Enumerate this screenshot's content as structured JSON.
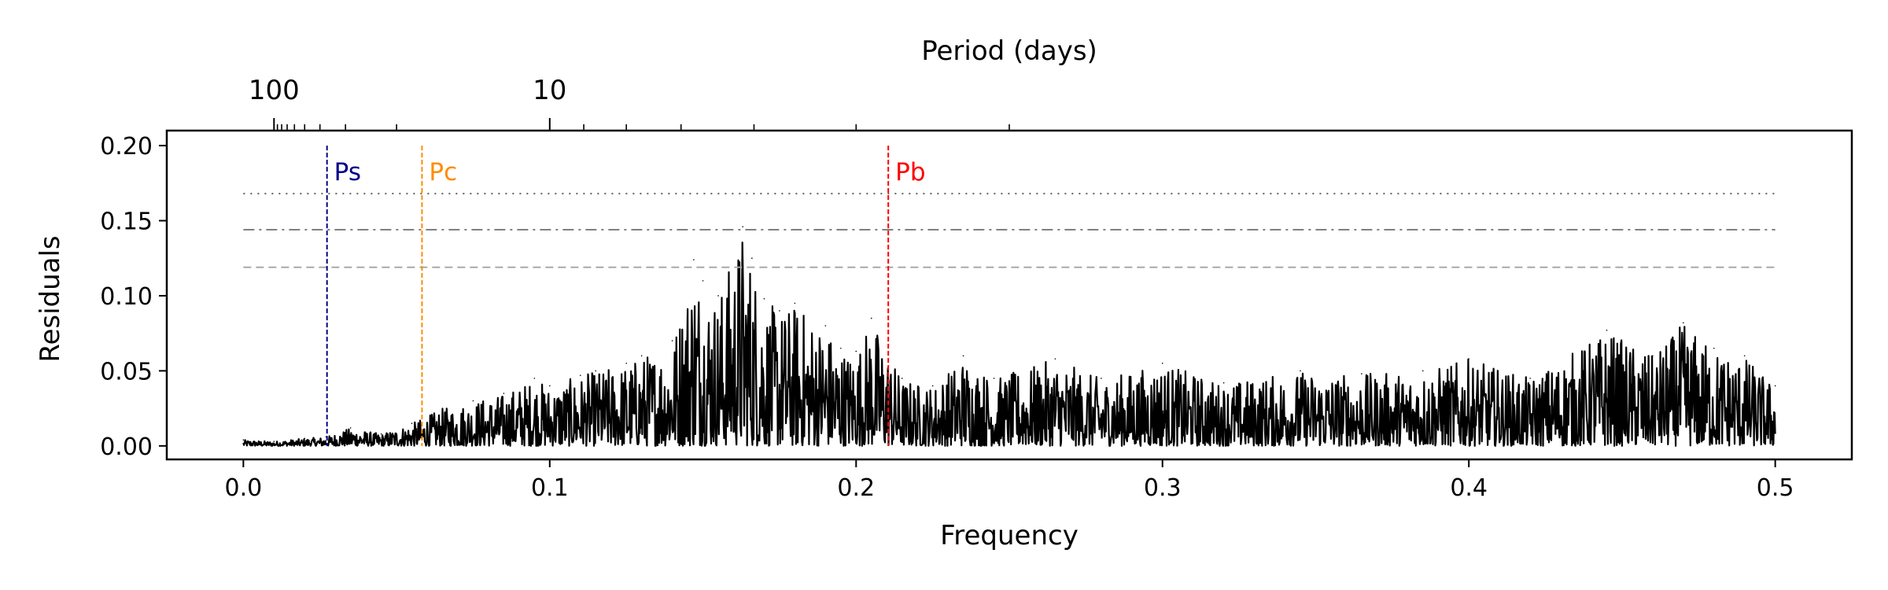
{
  "chart_data": {
    "type": "line",
    "xlabel": "Frequency",
    "ylabel": "Residuals",
    "top_axis_label": "Period (days)",
    "xlim": [
      -0.025,
      0.525
    ],
    "ylim": [
      -0.009,
      0.21
    ],
    "x_ticks": [
      0.0,
      0.1,
      0.2,
      0.3,
      0.4,
      0.5
    ],
    "x_tick_labels": [
      "0.0",
      "0.1",
      "0.2",
      "0.3",
      "0.4",
      "0.5"
    ],
    "y_ticks": [
      0.0,
      0.05,
      0.1,
      0.15,
      0.2
    ],
    "y_tick_labels": [
      "0.00",
      "0.05",
      "0.10",
      "0.15",
      "0.20"
    ],
    "top_major_ticks": [
      100,
      10
    ],
    "top_major_tick_labels": [
      "100",
      "10"
    ],
    "top_minor_ticks": [
      90,
      80,
      70,
      60,
      50,
      40,
      30,
      20,
      9,
      8,
      7,
      6,
      5,
      4
    ],
    "grid": false,
    "colors": {
      "series": "#000000",
      "Ps": "#00008b",
      "Pc": "#ff8c00",
      "Pb": "#ff0000",
      "threshold": "#808080",
      "threshold_light": "#a9a9a9"
    },
    "series": [
      {
        "x": [
          0.0,
          0.01,
          0.02,
          0.027,
          0.035,
          0.045,
          0.055,
          0.065,
          0.075,
          0.085,
          0.095,
          0.1,
          0.11,
          0.115,
          0.125,
          0.13,
          0.14,
          0.147,
          0.15,
          0.155,
          0.163,
          0.166,
          0.17,
          0.175,
          0.18,
          0.19,
          0.195,
          0.2,
          0.205,
          0.215,
          0.225,
          0.235,
          0.245,
          0.265,
          0.28,
          0.3,
          0.32,
          0.345,
          0.365,
          0.385,
          0.4,
          0.42,
          0.445,
          0.46,
          0.47,
          0.48,
          0.49,
          0.5
        ],
        "y": [
          0.004,
          0.003,
          0.005,
          0.006,
          0.012,
          0.008,
          0.015,
          0.025,
          0.03,
          0.035,
          0.045,
          0.04,
          0.047,
          0.05,
          0.055,
          0.06,
          0.07,
          0.124,
          0.11,
          0.1,
          0.146,
          0.125,
          0.098,
          0.09,
          0.095,
          0.08,
          0.065,
          0.063,
          0.085,
          0.045,
          0.04,
          0.06,
          0.045,
          0.058,
          0.045,
          0.055,
          0.042,
          0.05,
          0.048,
          0.05,
          0.058,
          0.045,
          0.077,
          0.06,
          0.082,
          0.065,
          0.06,
          0.04
        ]
      }
    ],
    "hlines": [
      {
        "y": 0.168,
        "style": "dotted",
        "color": "#606060"
      },
      {
        "y": 0.144,
        "style": "dashdot",
        "color": "#808080"
      },
      {
        "y": 0.119,
        "style": "dashed",
        "color": "#a9a9a9"
      }
    ],
    "vlines": [
      {
        "x": 0.0273,
        "label": "Ps",
        "color": "#00008b"
      },
      {
        "x": 0.0583,
        "label": "Pc",
        "color": "#ff8c00"
      },
      {
        "x": 0.2105,
        "label": "Pb",
        "color": "#ff0000"
      }
    ]
  }
}
